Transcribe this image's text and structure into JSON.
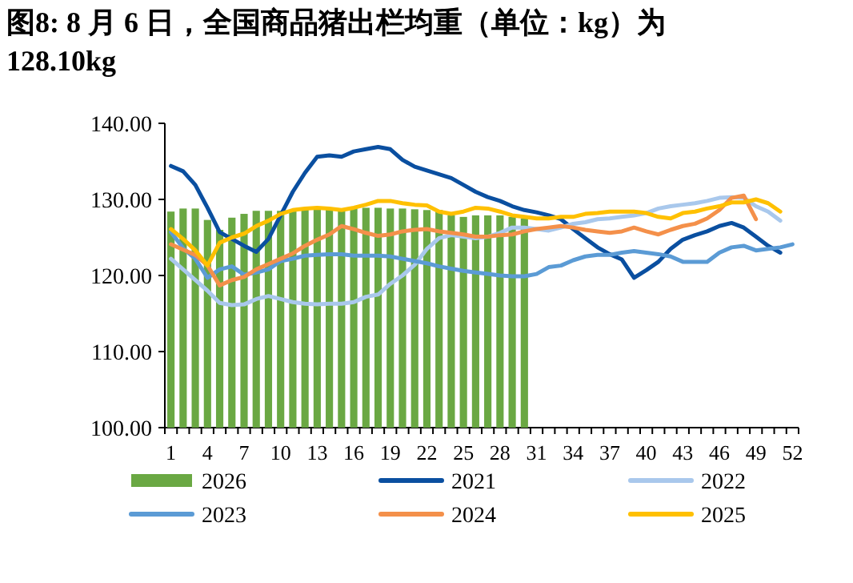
{
  "chart_data": {
    "type": "line",
    "title": "图8: 8 月 6 日，全国商品猪出栏均重（单位：kg）为128.10kg",
    "categories": [
      "1",
      null,
      null,
      "4",
      null,
      null,
      "7",
      null,
      null,
      "10",
      null,
      null,
      "13",
      null,
      null,
      "16",
      null,
      null,
      "19",
      null,
      null,
      "22",
      null,
      null,
      "25",
      null,
      null,
      "28",
      null,
      null,
      "31",
      null,
      null,
      "34",
      null,
      null,
      "37",
      null,
      null,
      "40",
      null,
      null,
      "43",
      null,
      null,
      "46",
      null,
      null,
      "49",
      null,
      null,
      "52"
    ],
    "ylim": [
      100,
      140
    ],
    "yticks": [
      {
        "value": 100,
        "label": "100.00"
      },
      {
        "value": 110,
        "label": "110.00"
      },
      {
        "value": 120,
        "label": "120.00"
      },
      {
        "value": 130,
        "label": "130.00"
      },
      {
        "value": 140,
        "label": "140.00"
      }
    ],
    "legend": "bottom",
    "series": [
      {
        "name": "2026",
        "type": "bar",
        "color": "#6aa843",
        "values": [
          128.4,
          128.8,
          128.8,
          127.3,
          126.0,
          127.6,
          128.1,
          128.5,
          128.5,
          128.5,
          128.6,
          128.7,
          128.8,
          128.8,
          128.8,
          128.9,
          128.9,
          128.9,
          128.8,
          128.8,
          128.7,
          128.6,
          128.6,
          127.9,
          127.7,
          127.9,
          127.9,
          127.9,
          127.7,
          127.5,
          null,
          null,
          null,
          null,
          null,
          null,
          null,
          null,
          null,
          null,
          null,
          null,
          null,
          null,
          null,
          null,
          null,
          null,
          null,
          null,
          null,
          null
        ]
      },
      {
        "name": "2021",
        "color": "#0a4fa0",
        "values": [
          134.4,
          133.7,
          131.9,
          128.9,
          125.7,
          124.8,
          123.9,
          123.1,
          124.8,
          127.9,
          131.0,
          133.5,
          135.6,
          135.8,
          135.6,
          136.3,
          136.6,
          136.9,
          136.6,
          135.2,
          134.3,
          133.8,
          133.3,
          132.8,
          131.9,
          131.0,
          130.3,
          129.8,
          129.1,
          128.6,
          128.3,
          127.9,
          127.4,
          126.1,
          124.9,
          123.7,
          122.8,
          122.1,
          119.7,
          120.7,
          121.8,
          123.5,
          124.7,
          125.3,
          125.8,
          126.5,
          126.9,
          126.3,
          125.1,
          123.9,
          123.0,
          null
        ]
      },
      {
        "name": "2022",
        "color": "#a9c8ec",
        "values": [
          122.2,
          120.8,
          119.4,
          118.0,
          116.4,
          116.1,
          116.2,
          116.9,
          117.3,
          116.9,
          116.5,
          116.3,
          116.2,
          116.3,
          116.3,
          116.5,
          117.2,
          117.5,
          118.9,
          120.0,
          121.4,
          123.5,
          124.9,
          125.3,
          125.1,
          124.9,
          125.1,
          125.6,
          126.3,
          126.3,
          126.1,
          125.9,
          126.3,
          126.8,
          127.0,
          127.4,
          127.5,
          127.7,
          127.9,
          128.2,
          128.8,
          129.1,
          129.3,
          129.5,
          129.8,
          130.2,
          130.3,
          130.2,
          129.1,
          128.4,
          127.2,
          null
        ]
      },
      {
        "name": "2023",
        "color": "#5b9bd5",
        "values": [
          125.7,
          123.6,
          122.2,
          119.7,
          120.8,
          121.2,
          120.1,
          120.4,
          120.8,
          121.9,
          122.2,
          122.6,
          122.7,
          122.8,
          122.8,
          122.6,
          122.6,
          122.6,
          122.5,
          122.2,
          121.9,
          121.6,
          121.2,
          120.9,
          120.6,
          120.4,
          120.2,
          120.0,
          119.9,
          119.9,
          120.2,
          121.1,
          121.3,
          122.0,
          122.5,
          122.7,
          122.7,
          123.0,
          123.2,
          123.0,
          122.8,
          122.5,
          121.8,
          121.8,
          121.8,
          123.0,
          123.7,
          123.9,
          123.3,
          123.5,
          123.7,
          124.1
        ]
      },
      {
        "name": "2024",
        "color": "#f4904a",
        "values": [
          124.1,
          123.4,
          122.7,
          121.3,
          118.7,
          119.4,
          119.8,
          120.8,
          121.5,
          122.2,
          122.9,
          123.9,
          124.7,
          125.4,
          126.5,
          126.1,
          125.6,
          125.2,
          125.4,
          125.8,
          126.0,
          126.1,
          125.8,
          125.6,
          125.4,
          125.1,
          125.1,
          125.3,
          125.4,
          125.8,
          126.1,
          126.3,
          126.5,
          126.3,
          126.0,
          125.8,
          125.6,
          125.8,
          126.3,
          125.8,
          125.4,
          126.0,
          126.5,
          126.8,
          127.5,
          128.6,
          130.2,
          130.5,
          127.4,
          null,
          null,
          null
        ]
      },
      {
        "name": "2025",
        "color": "#ffc000",
        "values": [
          126.1,
          124.8,
          123.3,
          121.3,
          124.3,
          125.0,
          125.5,
          126.5,
          127.2,
          128.1,
          128.6,
          128.8,
          128.9,
          128.8,
          128.6,
          128.9,
          129.3,
          129.8,
          129.8,
          129.5,
          129.3,
          129.2,
          128.4,
          128.1,
          128.4,
          128.9,
          128.8,
          128.4,
          127.9,
          127.7,
          127.5,
          127.5,
          127.7,
          127.7,
          128.1,
          128.2,
          128.4,
          128.4,
          128.4,
          128.2,
          127.7,
          127.5,
          128.2,
          128.4,
          128.8,
          129.1,
          129.6,
          129.6,
          130.0,
          129.5,
          128.4,
          null
        ]
      }
    ]
  }
}
